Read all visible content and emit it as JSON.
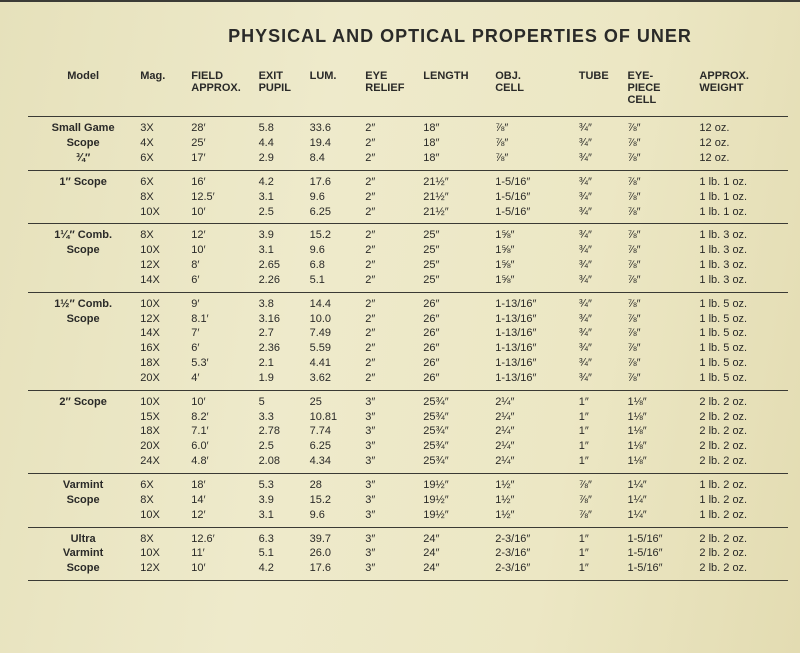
{
  "title": "PHYSICAL AND OPTICAL PROPERTIES OF UNER",
  "columns": [
    "Model",
    "Mag.",
    "FIELD\nAPPROX.",
    "EXIT\nPUPIL",
    "LUM.",
    "EYE\nRELIEF",
    "LENGTH",
    "OBJ.\nCELL",
    "TUBE",
    "EYE-\nPIECE\nCELL",
    "APPROX.\nWEIGHT"
  ],
  "groups": [
    {
      "model": [
        "Small Game",
        "Scope",
        "¾″"
      ],
      "rows": [
        [
          "3X",
          "28′",
          "5.8",
          "33.6",
          "2″",
          "18″",
          "⅞″",
          "¾″",
          "⅞″",
          "12 oz."
        ],
        [
          "4X",
          "25′",
          "4.4",
          "19.4",
          "2″",
          "18″",
          "⅞″",
          "¾″",
          "⅞″",
          "12 oz."
        ],
        [
          "6X",
          "17′",
          "2.9",
          "8.4",
          "2″",
          "18″",
          "⅞″",
          "¾″",
          "⅞″",
          "12 oz."
        ]
      ]
    },
    {
      "model": [
        "1″ Scope"
      ],
      "rows": [
        [
          "6X",
          "16′",
          "4.2",
          "17.6",
          "2″",
          "21½″",
          "1-5/16″",
          "¾″",
          "⅞″",
          "1 lb. 1 oz."
        ],
        [
          "8X",
          "12.5′",
          "3.1",
          "9.6",
          "2″",
          "21½″",
          "1-5/16″",
          "¾″",
          "⅞″",
          "1 lb. 1 oz."
        ],
        [
          "10X",
          "10′",
          "2.5",
          "6.25",
          "2″",
          "21½″",
          "1-5/16″",
          "¾″",
          "⅞″",
          "1 lb. 1 oz."
        ]
      ]
    },
    {
      "model": [
        "1¼″ Comb.",
        "Scope"
      ],
      "rows": [
        [
          "8X",
          "12′",
          "3.9",
          "15.2",
          "2″",
          "25″",
          "1⅝″",
          "¾″",
          "⅞″",
          "1 lb. 3 oz."
        ],
        [
          "10X",
          "10′",
          "3.1",
          "9.6",
          "2″",
          "25″",
          "1⅝″",
          "¾″",
          "⅞″",
          "1 lb. 3 oz."
        ],
        [
          "12X",
          "8′",
          "2.65",
          "6.8",
          "2″",
          "25″",
          "1⅝″",
          "¾″",
          "⅞″",
          "1 lb. 3 oz."
        ],
        [
          "14X",
          "6′",
          "2.26",
          "5.1",
          "2″",
          "25″",
          "1⅝″",
          "¾″",
          "⅞″",
          "1 lb. 3 oz."
        ]
      ]
    },
    {
      "model": [
        "1½″ Comb.",
        "Scope"
      ],
      "rows": [
        [
          "10X",
          "9′",
          "3.8",
          "14.4",
          "2″",
          "26″",
          "1-13/16″",
          "¾″",
          "⅞″",
          "1 lb. 5 oz."
        ],
        [
          "12X",
          "8.1′",
          "3.16",
          "10.0",
          "2″",
          "26″",
          "1-13/16″",
          "¾″",
          "⅞″",
          "1 lb. 5 oz."
        ],
        [
          "14X",
          "7′",
          "2.7",
          "7.49",
          "2″",
          "26″",
          "1-13/16″",
          "¾″",
          "⅞″",
          "1 lb. 5 oz."
        ],
        [
          "16X",
          "6′",
          "2.36",
          "5.59",
          "2″",
          "26″",
          "1-13/16″",
          "¾″",
          "⅞″",
          "1 lb. 5 oz."
        ],
        [
          "18X",
          "5.3′",
          "2.1",
          "4.41",
          "2″",
          "26″",
          "1-13/16″",
          "¾″",
          "⅞″",
          "1 lb. 5 oz."
        ],
        [
          "20X",
          "4′",
          "1.9",
          "3.62",
          "2″",
          "26″",
          "1-13/16″",
          "¾″",
          "⅞″",
          "1 lb. 5 oz."
        ]
      ]
    },
    {
      "model": [
        "2″ Scope"
      ],
      "rows": [
        [
          "10X",
          "10′",
          "5",
          "25",
          "3″",
          "25¾″",
          "2¼″",
          "1″",
          "1⅛″",
          "2 lb. 2 oz."
        ],
        [
          "15X",
          "8.2′",
          "3.3",
          "10.81",
          "3″",
          "25¾″",
          "2¼″",
          "1″",
          "1⅛″",
          "2 lb. 2 oz."
        ],
        [
          "18X",
          "7.1′",
          "2.78",
          "7.74",
          "3″",
          "25¾″",
          "2¼″",
          "1″",
          "1⅛″",
          "2 lb. 2 oz."
        ],
        [
          "20X",
          "6.0′",
          "2.5",
          "6.25",
          "3″",
          "25¾″",
          "2¼″",
          "1″",
          "1⅛″",
          "2 lb. 2 oz."
        ],
        [
          "24X",
          "4.8′",
          "2.08",
          "4.34",
          "3″",
          "25¾″",
          "2¼″",
          "1″",
          "1⅛″",
          "2 lb. 2 oz."
        ]
      ]
    },
    {
      "model": [
        "Varmint",
        "Scope"
      ],
      "rows": [
        [
          "6X",
          "18′",
          "5.3",
          "28",
          "3″",
          "19½″",
          "1½″",
          "⅞″",
          "1¼″",
          "1 lb. 2 oz."
        ],
        [
          "8X",
          "14′",
          "3.9",
          "15.2",
          "3″",
          "19½″",
          "1½″",
          "⅞″",
          "1¼″",
          "1 lb. 2 oz."
        ],
        [
          "10X",
          "12′",
          "3.1",
          "9.6",
          "3″",
          "19½″",
          "1½″",
          "⅞″",
          "1¼″",
          "1 lb. 2 oz."
        ]
      ]
    },
    {
      "model": [
        "Ultra",
        "Varmint",
        "Scope"
      ],
      "rows": [
        [
          "8X",
          "12.6′",
          "6.3",
          "39.7",
          "3″",
          "24″",
          "2-3/16″",
          "1″",
          "1-5/16″",
          "2 lb. 2 oz."
        ],
        [
          "10X",
          "11′",
          "5.1",
          "26.0",
          "3″",
          "24″",
          "2-3/16″",
          "1″",
          "1-5/16″",
          "2 lb. 2 oz."
        ],
        [
          "12X",
          "10′",
          "4.2",
          "17.6",
          "3″",
          "24″",
          "2-3/16″",
          "1″",
          "1-5/16″",
          "2 lb. 2 oz."
        ]
      ]
    }
  ]
}
